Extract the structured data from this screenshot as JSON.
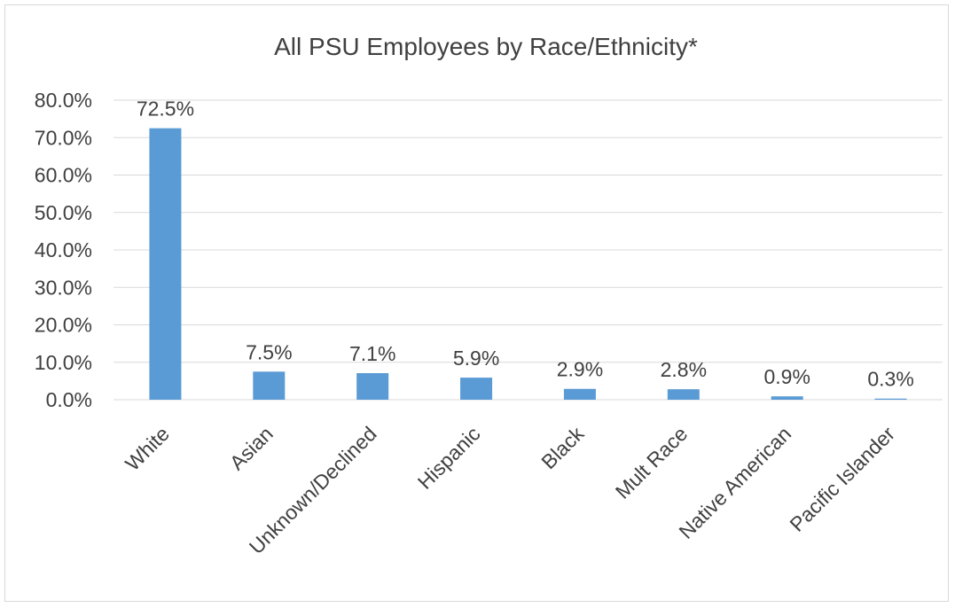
{
  "chart_data": {
    "type": "bar",
    "title": "All PSU Employees by Race/Ethnicity*",
    "xlabel": "",
    "ylabel": "",
    "categories": [
      "White",
      "Asian",
      "Unknown/Declined",
      "Hispanic",
      "Black",
      "Mult Race",
      "Native American",
      "Pacific Islander"
    ],
    "values": [
      72.5,
      7.5,
      7.1,
      5.9,
      2.9,
      2.8,
      0.9,
      0.3
    ],
    "data_labels": [
      "72.5%",
      "7.5%",
      "7.1%",
      "5.9%",
      "2.9%",
      "2.8%",
      "0.9%",
      "0.3%"
    ],
    "ylim": [
      0,
      80
    ],
    "yticks": [
      0,
      10,
      20,
      30,
      40,
      50,
      60,
      70,
      80
    ],
    "ytick_labels": [
      "0.0%",
      "10.0%",
      "20.0%",
      "30.0%",
      "40.0%",
      "50.0%",
      "60.0%",
      "70.0%",
      "80.0%"
    ],
    "grid": true,
    "legend": "none",
    "bar_color": "#5b9bd5",
    "grid_color": "#d9d9d9",
    "text_color": "#404040"
  }
}
